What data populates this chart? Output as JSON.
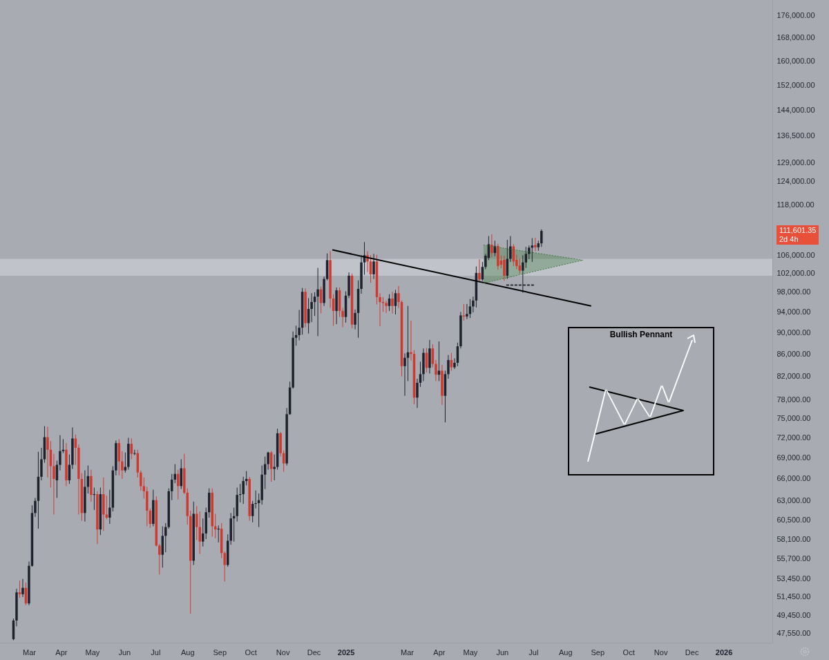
{
  "chart_data": {
    "type": "candlestick",
    "x": [
      "2024-02-15",
      "2024-02-18",
      "2024-02-21",
      "2024-02-24",
      "2024-02-27",
      "2024-03-01",
      "2024-03-04",
      "2024-03-07",
      "2024-03-10",
      "2024-03-13",
      "2024-03-16",
      "2024-03-19",
      "2024-03-22",
      "2024-03-25",
      "2024-03-28",
      "2024-03-31",
      "2024-04-03",
      "2024-04-06",
      "2024-04-09",
      "2024-04-12",
      "2024-04-15",
      "2024-04-18",
      "2024-04-21",
      "2024-04-24",
      "2024-04-27",
      "2024-04-30",
      "2024-05-03",
      "2024-05-06",
      "2024-05-09",
      "2024-05-12",
      "2024-05-15",
      "2024-05-18",
      "2024-05-21",
      "2024-05-24",
      "2024-05-27",
      "2024-05-30",
      "2024-06-02",
      "2024-06-05",
      "2024-06-08",
      "2024-06-11",
      "2024-06-14",
      "2024-06-17",
      "2024-06-20",
      "2024-06-23",
      "2024-06-26",
      "2024-06-29",
      "2024-07-02",
      "2024-07-05",
      "2024-07-08",
      "2024-07-11",
      "2024-07-14",
      "2024-07-17",
      "2024-07-20",
      "2024-07-23",
      "2024-07-26",
      "2024-07-29",
      "2024-08-01",
      "2024-08-04",
      "2024-08-07",
      "2024-08-10",
      "2024-08-13",
      "2024-08-16",
      "2024-08-19",
      "2024-08-22",
      "2024-08-25",
      "2024-08-28",
      "2024-08-31",
      "2024-09-03",
      "2024-09-06",
      "2024-09-09",
      "2024-09-12",
      "2024-09-15",
      "2024-09-18",
      "2024-09-21",
      "2024-09-24",
      "2024-09-27",
      "2024-09-30",
      "2024-10-03",
      "2024-10-06",
      "2024-10-09",
      "2024-10-12",
      "2024-10-15",
      "2024-10-18",
      "2024-10-21",
      "2024-10-24",
      "2024-10-27",
      "2024-10-30",
      "2024-11-02",
      "2024-11-05",
      "2024-11-08",
      "2024-11-11",
      "2024-11-14",
      "2024-11-17",
      "2024-11-20",
      "2024-11-23",
      "2024-11-26",
      "2024-11-29",
      "2024-12-02",
      "2024-12-05",
      "2024-12-08",
      "2024-12-11",
      "2024-12-14",
      "2024-12-17",
      "2024-12-20",
      "2024-12-23",
      "2024-12-26",
      "2024-12-29",
      "2025-01-01",
      "2025-01-04",
      "2025-01-07",
      "2025-01-10",
      "2025-01-13",
      "2025-01-16",
      "2025-01-19",
      "2025-01-22",
      "2025-01-25",
      "2025-01-28",
      "2025-01-31",
      "2025-02-03",
      "2025-02-06",
      "2025-02-09",
      "2025-02-12",
      "2025-02-15",
      "2025-02-18",
      "2025-02-21",
      "2025-02-24",
      "2025-02-27",
      "2025-03-02",
      "2025-03-05",
      "2025-03-08",
      "2025-03-11",
      "2025-03-14",
      "2025-03-17",
      "2025-03-20",
      "2025-03-23",
      "2025-03-26",
      "2025-03-29",
      "2025-04-01",
      "2025-04-04",
      "2025-04-07",
      "2025-04-10",
      "2025-04-13",
      "2025-04-16",
      "2025-04-19",
      "2025-04-22",
      "2025-04-25",
      "2025-04-28",
      "2025-05-01",
      "2025-05-04",
      "2025-05-07",
      "2025-05-10",
      "2025-05-13",
      "2025-05-16",
      "2025-05-19",
      "2025-05-22",
      "2025-05-25",
      "2025-05-28",
      "2025-05-31",
      "2025-06-03",
      "2025-06-06",
      "2025-06-09",
      "2025-06-12",
      "2025-06-15",
      "2025-06-18",
      "2025-06-21",
      "2025-06-24",
      "2025-06-27",
      "2025-06-30",
      "2025-07-03",
      "2025-07-06",
      "2025-07-09"
    ],
    "ohlc": [
      [
        47000,
        49100,
        46900,
        48900
      ],
      [
        48900,
        52300,
        48300,
        51900
      ],
      [
        51900,
        53200,
        51300,
        51700
      ],
      [
        51700,
        53400,
        51400,
        52400
      ],
      [
        52400,
        53000,
        50500,
        50700
      ],
      [
        50700,
        55400,
        50500,
        54900
      ],
      [
        54900,
        62400,
        54800,
        61400
      ],
      [
        61400,
        63400,
        60900,
        63000
      ],
      [
        63000,
        69900,
        59400,
        66300
      ],
      [
        66300,
        70500,
        65800,
        68800
      ],
      [
        68800,
        73800,
        68300,
        72100
      ],
      [
        72100,
        73700,
        66200,
        70200
      ],
      [
        70200,
        71500,
        64800,
        67800
      ],
      [
        67800,
        69600,
        61200,
        66000
      ],
      [
        65800,
        68600,
        63400,
        68000
      ],
      [
        68000,
        72400,
        67200,
        70000
      ],
      [
        70000,
        71800,
        69700,
        70200
      ],
      [
        70200,
        71200,
        65000,
        65800
      ],
      [
        65800,
        69500,
        65300,
        68000
      ],
      [
        68000,
        73600,
        67400,
        71900
      ],
      [
        71900,
        72500,
        68000,
        70500
      ],
      [
        70500,
        71000,
        61200,
        66000
      ],
      [
        66000,
        66800,
        60400,
        61400
      ],
      [
        61400,
        67200,
        60300,
        64900
      ],
      [
        64900,
        67900,
        64000,
        66400
      ],
      [
        66400,
        67300,
        62900,
        63800
      ],
      [
        63800,
        64800,
        61800,
        63900
      ],
      [
        63900,
        64300,
        57500,
        59300
      ],
      [
        59300,
        64800,
        58600,
        63900
      ],
      [
        63900,
        66200,
        59100,
        61200
      ],
      [
        61200,
        63700,
        60600,
        60800
      ],
      [
        60800,
        64500,
        60000,
        62100
      ],
      [
        62100,
        67800,
        61600,
        67200
      ],
      [
        67200,
        71600,
        66500,
        71200
      ],
      [
        71200,
        71800,
        66500,
        68500
      ],
      [
        68500,
        70000,
        66000,
        67200
      ],
      [
        67200,
        69800,
        66900,
        67700
      ],
      [
        67700,
        72000,
        67300,
        71100
      ],
      [
        71100,
        71900,
        68800,
        69600
      ],
      [
        69600,
        70200,
        69400,
        69700
      ],
      [
        69700,
        70200,
        66200,
        66900
      ],
      [
        66900,
        67200,
        64400,
        65000
      ],
      [
        65000,
        66200,
        63300,
        64300
      ],
      [
        64300,
        64900,
        59700,
        61700
      ],
      [
        61700,
        62000,
        59500,
        60000
      ],
      [
        60000,
        64500,
        59700,
        63100
      ],
      [
        63100,
        63600,
        57200,
        57300
      ],
      [
        57300,
        57500,
        53900,
        56200
      ],
      [
        56200,
        59700,
        54700,
        58500
      ],
      [
        58500,
        60100,
        56500,
        59600
      ],
      [
        59600,
        64700,
        59400,
        64300
      ],
      [
        64300,
        66700,
        63100,
        65900
      ],
      [
        65900,
        68100,
        65400,
        66700
      ],
      [
        66700,
        67300,
        63200,
        65000
      ],
      [
        65000,
        68800,
        64600,
        67500
      ],
      [
        67500,
        69600,
        63900,
        64100
      ],
      [
        64100,
        64700,
        59900,
        61000
      ],
      [
        61000,
        61700,
        49600,
        55500
      ],
      [
        55500,
        62900,
        55000,
        61300
      ],
      [
        61300,
        62300,
        58000,
        59600
      ],
      [
        59600,
        61600,
        56300,
        57800
      ],
      [
        57800,
        60700,
        57200,
        58800
      ],
      [
        58800,
        62100,
        58100,
        61500
      ],
      [
        61500,
        64700,
        60800,
        64100
      ],
      [
        64100,
        64700,
        58400,
        59700
      ],
      [
        59700,
        61300,
        58200,
        59300
      ],
      [
        59300,
        59800,
        57700,
        59400
      ],
      [
        59400,
        60100,
        55800,
        56400
      ],
      [
        56400,
        56600,
        53100,
        55000
      ],
      [
        55000,
        58700,
        54800,
        57900
      ],
      [
        57900,
        61400,
        57400,
        60700
      ],
      [
        60700,
        62100,
        57800,
        61000
      ],
      [
        61000,
        64800,
        60300,
        63800
      ],
      [
        63800,
        65300,
        62800,
        63900
      ],
      [
        63900,
        66300,
        62600,
        65700
      ],
      [
        65700,
        67100,
        65100,
        66000
      ],
      [
        66000,
        66300,
        60400,
        61000
      ],
      [
        61000,
        63000,
        60200,
        62600
      ],
      [
        62600,
        64400,
        62000,
        62700
      ],
      [
        62700,
        64000,
        59600,
        63100
      ],
      [
        63100,
        67900,
        62500,
        66600
      ],
      [
        66600,
        69200,
        64600,
        68100
      ],
      [
        68100,
        69900,
        67300,
        69800
      ],
      [
        69800,
        70000,
        65600,
        67400
      ],
      [
        67400,
        69500,
        65800,
        67700
      ],
      [
        67700,
        73400,
        67300,
        72700
      ],
      [
        72700,
        72900,
        69200,
        69700
      ],
      [
        69700,
        70100,
        67000,
        68200
      ],
      [
        68200,
        76700,
        67900,
        75700
      ],
      [
        75700,
        81100,
        75600,
        80100
      ],
      [
        80100,
        90200,
        79900,
        89000
      ],
      [
        89000,
        91300,
        87500,
        89500
      ],
      [
        89500,
        94400,
        88500,
        90900
      ],
      [
        90900,
        98900,
        89600,
        98100
      ],
      [
        98100,
        98800,
        91000,
        91800
      ],
      [
        91800,
        96800,
        89800,
        94600
      ],
      [
        94600,
        97800,
        92000,
        96000
      ],
      [
        96000,
        98000,
        93200,
        97100
      ],
      [
        97100,
        103200,
        89300,
        98600
      ],
      [
        98600,
        99200,
        93700,
        95800
      ],
      [
        95800,
        101300,
        95200,
        100800
      ],
      [
        100800,
        106400,
        100500,
        104900
      ],
      [
        104900,
        106900,
        94800,
        96700
      ],
      [
        96700,
        97600,
        91300,
        94200
      ],
      [
        94200,
        99000,
        91600,
        98400
      ],
      [
        98400,
        99000,
        93000,
        94200
      ],
      [
        94200,
        94800,
        91000,
        93000
      ],
      [
        93000,
        98200,
        91900,
        97300
      ],
      [
        97300,
        102200,
        96800,
        101500
      ],
      [
        101500,
        102000,
        90800,
        91500
      ],
      [
        91500,
        94500,
        90600,
        93800
      ],
      [
        93800,
        100500,
        89000,
        98700
      ],
      [
        98700,
        106000,
        97700,
        104400
      ],
      [
        104400,
        109000,
        101700,
        106000
      ],
      [
        106000,
        106900,
        102300,
        104600
      ],
      [
        104600,
        106000,
        100000,
        101800
      ],
      [
        101800,
        106300,
        100800,
        104600
      ],
      [
        104600,
        106100,
        95500,
        97000
      ],
      [
        97000,
        97800,
        91200,
        96000
      ],
      [
        96000,
        97000,
        94000,
        95800
      ],
      [
        95800,
        96300,
        93800,
        95200
      ],
      [
        95200,
        97600,
        94200,
        96700
      ],
      [
        96700,
        98100,
        93700,
        95200
      ],
      [
        95200,
        98500,
        93500,
        97800
      ],
      [
        97800,
        99300,
        94800,
        96000
      ],
      [
        96000,
        96300,
        82000,
        83800
      ],
      [
        83800,
        86100,
        78700,
        85300
      ],
      [
        85300,
        95200,
        81200,
        86300
      ],
      [
        86300,
        92300,
        84800,
        86000
      ],
      [
        86000,
        86700,
        77300,
        78400
      ],
      [
        78400,
        81600,
        76700,
        80900
      ],
      [
        80900,
        84600,
        80200,
        82400
      ],
      [
        82400,
        87000,
        81200,
        86200
      ],
      [
        86200,
        87100,
        82700,
        83500
      ],
      [
        83500,
        88600,
        82500,
        87000
      ],
      [
        87000,
        87800,
        83600,
        84200
      ],
      [
        84200,
        84900,
        81200,
        82300
      ],
      [
        82300,
        88300,
        81200,
        83000
      ],
      [
        83000,
        84000,
        77200,
        78700
      ],
      [
        78700,
        83000,
        74400,
        82400
      ],
      [
        82400,
        85800,
        81600,
        84900
      ],
      [
        84900,
        86200,
        83000,
        83600
      ],
      [
        83600,
        85200,
        83300,
        84400
      ],
      [
        84400,
        88100,
        83800,
        87400
      ],
      [
        87400,
        94000,
        87000,
        93300
      ],
      [
        93300,
        95600,
        92300,
        93100
      ],
      [
        93100,
        95600,
        92600,
        93600
      ],
      [
        93600,
        96600,
        92800,
        95100
      ],
      [
        95100,
        97100,
        93900,
        96300
      ],
      [
        96300,
        103500,
        94900,
        102100
      ],
      [
        102100,
        105100,
        100200,
        100700
      ],
      [
        100700,
        104500,
        100400,
        103400
      ],
      [
        103400,
        106300,
        102900,
        105900
      ],
      [
        105400,
        110400,
        104900,
        108500
      ],
      [
        108400,
        110800,
        105600,
        106500
      ],
      [
        106500,
        109300,
        105800,
        108100
      ],
      [
        108100,
        108600,
        102800,
        103600
      ],
      [
        104800,
        105900,
        103100,
        103900
      ],
      [
        105000,
        105900,
        100400,
        101500
      ],
      [
        101500,
        109500,
        100800,
        105200
      ],
      [
        105200,
        110400,
        104500,
        108000
      ],
      [
        108000,
        108500,
        103600,
        104600
      ],
      [
        105000,
        106100,
        102900,
        103600
      ],
      [
        103700,
        105300,
        101900,
        102600
      ],
      [
        102600,
        106000,
        97900,
        104400
      ],
      [
        104400,
        107900,
        103200,
        106300
      ],
      [
        106300,
        108200,
        105100,
        107700
      ],
      [
        107700,
        109900,
        104500,
        108200
      ],
      [
        108300,
        110000,
        106900,
        107800
      ],
      [
        107800,
        109300,
        107000,
        108700
      ],
      [
        108700,
        112000,
        107900,
        111601.35
      ]
    ],
    "series": [
      {
        "type": "line",
        "x": [
          "2024-12-19",
          "2025-08-26"
        ],
        "values": [
          107200,
          95200
        ],
        "color": "#000000"
      },
      {
        "type": "line",
        "x": [
          "2025-05-14",
          "2025-08-18"
        ],
        "values": [
          108300,
          104900
        ],
        "lower": [
          99900,
          104900
        ],
        "upper": [
          108300,
          104900
        ],
        "color": "#3d7a3d",
        "line_style": "dotted"
      },
      {
        "type": "line",
        "x": [
          "2025-05-14",
          "2025-08-18"
        ],
        "values": [
          99900,
          104900
        ],
        "color": "#3d7a3d",
        "line_style": "dotted"
      },
      {
        "type": "line",
        "x": [
          "2025-06-05",
          "2025-07-02"
        ],
        "values": [
          99500,
          99500
        ],
        "color": "#2a2e39",
        "line_style": "dashed"
      }
    ],
    "bands": [
      {
        "axis": "y",
        "from": 101500,
        "to": 105200,
        "color": "#d2d4da"
      }
    ],
    "annotations": [
      "111,601.35",
      "2d 4h",
      "Bullish Pennant"
    ],
    "log": true,
    "xlim": [
      "2024-02-02",
      "2026-02-17"
    ],
    "xticks": [
      {
        "value": "2024-03-01",
        "label": "Mar"
      },
      {
        "value": "2024-04-01",
        "label": "Apr"
      },
      {
        "value": "2024-05-01",
        "label": "May"
      },
      {
        "value": "2024-06-01",
        "label": "Jun"
      },
      {
        "value": "2024-07-01",
        "label": "Jul"
      },
      {
        "value": "2024-08-01",
        "label": "Aug"
      },
      {
        "value": "2024-09-01",
        "label": "Sep"
      },
      {
        "value": "2024-10-01",
        "label": "Oct"
      },
      {
        "value": "2024-11-01",
        "label": "Nov"
      },
      {
        "value": "2024-12-01",
        "label": "Dec"
      },
      {
        "value": "2025-01-01",
        "label": "2025"
      },
      {
        "value": "2025-03-01",
        "label": "Mar"
      },
      {
        "value": "2025-04-01",
        "label": "Apr"
      },
      {
        "value": "2025-05-01",
        "label": "May"
      },
      {
        "value": "2025-06-01",
        "label": "Jun"
      },
      {
        "value": "2025-07-01",
        "label": "Jul"
      },
      {
        "value": "2025-08-01",
        "label": "Aug"
      },
      {
        "value": "2025-09-01",
        "label": "Sep"
      },
      {
        "value": "2025-10-01",
        "label": "Oct"
      },
      {
        "value": "2025-11-01",
        "label": "Nov"
      },
      {
        "value": "2025-12-01",
        "label": "Dec"
      },
      {
        "value": "2026-01-01",
        "label": "2026"
      }
    ],
    "ylim": [
      46650,
      182000
    ],
    "yticks": [
      {
        "value": 47550,
        "label": "47,550.00"
      },
      {
        "value": 49450,
        "label": "49,450.00"
      },
      {
        "value": 51450,
        "label": "51,450.00"
      },
      {
        "value": 53450,
        "label": "53,450.00"
      },
      {
        "value": 55700,
        "label": "55,700.00"
      },
      {
        "value": 58100,
        "label": "58,100.00"
      },
      {
        "value": 60500,
        "label": "60,500.00"
      },
      {
        "value": 63000,
        "label": "63,000.00"
      },
      {
        "value": 66000,
        "label": "66,000.00"
      },
      {
        "value": 69000,
        "label": "69,000.00"
      },
      {
        "value": 72000,
        "label": "72,000.00"
      },
      {
        "value": 75000,
        "label": "75,000.00"
      },
      {
        "value": 78000,
        "label": "78,000.00"
      },
      {
        "value": 82000,
        "label": "82,000.00"
      },
      {
        "value": 86000,
        "label": "86,000.00"
      },
      {
        "value": 90000,
        "label": "90,000.00"
      },
      {
        "value": 94000,
        "label": "94,000.00"
      },
      {
        "value": 98000,
        "label": "98,000.00"
      },
      {
        "value": 102000,
        "label": "102,000.00"
      },
      {
        "value": 106000,
        "label": "106,000.00"
      },
      {
        "value": 118000,
        "label": "118,000.00"
      },
      {
        "value": 124000,
        "label": "124,000.00"
      },
      {
        "value": 129000,
        "label": "129,000.00"
      },
      {
        "value": 136500,
        "label": "136,500.00"
      },
      {
        "value": 144000,
        "label": "144,000.00"
      },
      {
        "value": 152000,
        "label": "152,000.00"
      },
      {
        "value": 160000,
        "label": "160,000.00"
      },
      {
        "value": 168000,
        "label": "168,000.00"
      },
      {
        "value": 176000,
        "label": "176,000.00"
      }
    ]
  }
}
